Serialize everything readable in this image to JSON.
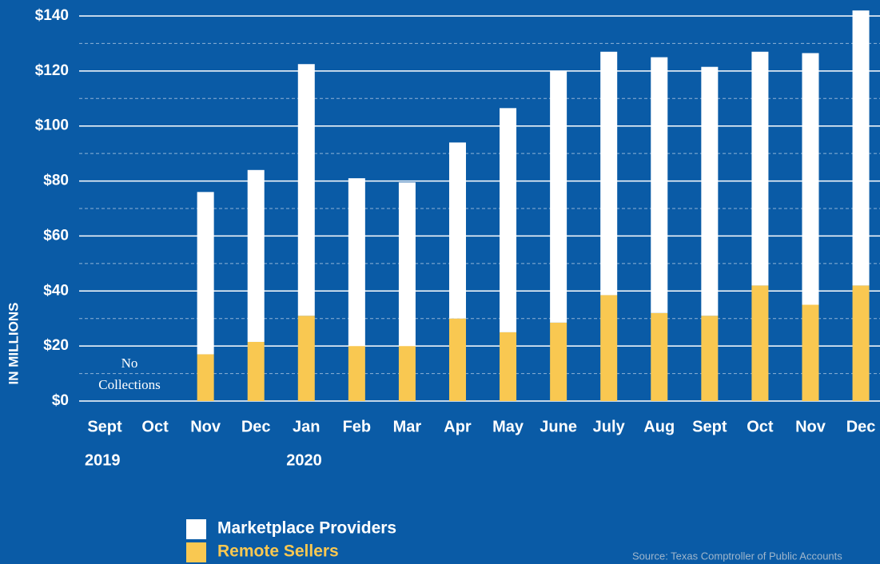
{
  "chart_data": {
    "type": "stacked_bar",
    "y_axis_label": "IN MILLIONS",
    "categories": [
      "Sept",
      "Oct",
      "Nov",
      "Dec",
      "Jan",
      "Feb",
      "Mar",
      "Apr",
      "May",
      "June",
      "July",
      "Aug",
      "Sept",
      "Oct",
      "Nov",
      "Dec"
    ],
    "year_labels": [
      {
        "index": 0,
        "label": "2019"
      },
      {
        "index": 4,
        "label": "2020"
      }
    ],
    "series": [
      {
        "name": "Remote Sellers",
        "color": "#f9c851",
        "values": [
          null,
          null,
          17,
          21.5,
          31,
          20,
          20,
          30,
          25,
          28.5,
          38.5,
          32,
          31,
          42,
          35,
          42
        ]
      },
      {
        "name": "Marketplace Providers",
        "color": "#ffffff",
        "values": [
          null,
          null,
          59,
          62.5,
          91.5,
          61,
          59.5,
          64,
          81.5,
          91.5,
          88.5,
          93,
          90.5,
          85,
          91.5,
          100
        ]
      }
    ],
    "ylim": [
      0,
      140
    ],
    "yticks": [
      {
        "value": 0,
        "label": "$0"
      },
      {
        "value": 20,
        "label": "$20"
      },
      {
        "value": 40,
        "label": "$40"
      },
      {
        "value": 60,
        "label": "$60"
      },
      {
        "value": 80,
        "label": "$80"
      },
      {
        "value": 100,
        "label": "$100"
      },
      {
        "value": 120,
        "label": "$120"
      },
      {
        "value": 140,
        "label": "$140"
      }
    ],
    "minor_yticks": [
      10,
      30,
      50,
      70,
      90,
      110,
      130
    ],
    "grid": true,
    "annotation": {
      "index": 0,
      "lines": [
        "No",
        "Collections"
      ]
    },
    "source": "Source: Texas Comptroller of Public Accounts",
    "background": "#0a5ba6"
  }
}
